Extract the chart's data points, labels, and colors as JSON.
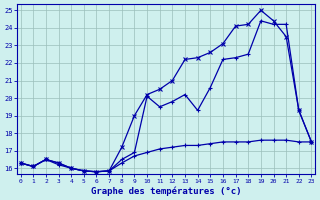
{
  "title": "Graphe des températures (°c)",
  "bg_color": "#cff0ee",
  "line_color": "#0000aa",
  "xlim": [
    -0.3,
    23.3
  ],
  "ylim": [
    15.65,
    25.35
  ],
  "xticks": [
    0,
    1,
    2,
    3,
    4,
    5,
    6,
    7,
    8,
    9,
    10,
    11,
    12,
    13,
    14,
    15,
    16,
    17,
    18,
    19,
    20,
    21,
    22,
    23
  ],
  "yticks": [
    16,
    17,
    18,
    19,
    20,
    21,
    22,
    23,
    24,
    25
  ],
  "series1_x": [
    0,
    1,
    2,
    3,
    4,
    5,
    6,
    7,
    8,
    9,
    10,
    11,
    12,
    13,
    14,
    15,
    16,
    17,
    18,
    19,
    20,
    21,
    22,
    23
  ],
  "series1_y": [
    16.3,
    16.1,
    16.5,
    16.3,
    16.0,
    15.85,
    15.8,
    15.85,
    16.5,
    16.9,
    20.1,
    19.5,
    19.8,
    20.2,
    19.3,
    20.6,
    22.2,
    22.3,
    22.5,
    24.4,
    24.2,
    24.2,
    19.3,
    17.5
  ],
  "series2_x": [
    0,
    1,
    2,
    3,
    4,
    5,
    6,
    7,
    8,
    9,
    10,
    11,
    12,
    13,
    14,
    15,
    16,
    17,
    18,
    19,
    20,
    21,
    22,
    23
  ],
  "series2_y": [
    16.3,
    16.1,
    16.5,
    16.3,
    16.0,
    15.85,
    15.8,
    15.85,
    17.2,
    19.0,
    20.2,
    20.5,
    21.0,
    22.2,
    22.3,
    22.6,
    23.1,
    24.1,
    24.2,
    25.0,
    24.4,
    23.5,
    19.3,
    17.5
  ],
  "series3_x": [
    0,
    1,
    2,
    3,
    4,
    5,
    6,
    7,
    8,
    9,
    10,
    11,
    12,
    13,
    14,
    15,
    16,
    17,
    18,
    19,
    20,
    21,
    22,
    23
  ],
  "series3_y": [
    16.3,
    16.1,
    16.5,
    16.2,
    16.0,
    15.85,
    15.8,
    15.85,
    16.3,
    16.7,
    16.9,
    17.1,
    17.2,
    17.3,
    17.3,
    17.4,
    17.5,
    17.5,
    17.5,
    17.6,
    17.6,
    17.6,
    17.5,
    17.5
  ]
}
